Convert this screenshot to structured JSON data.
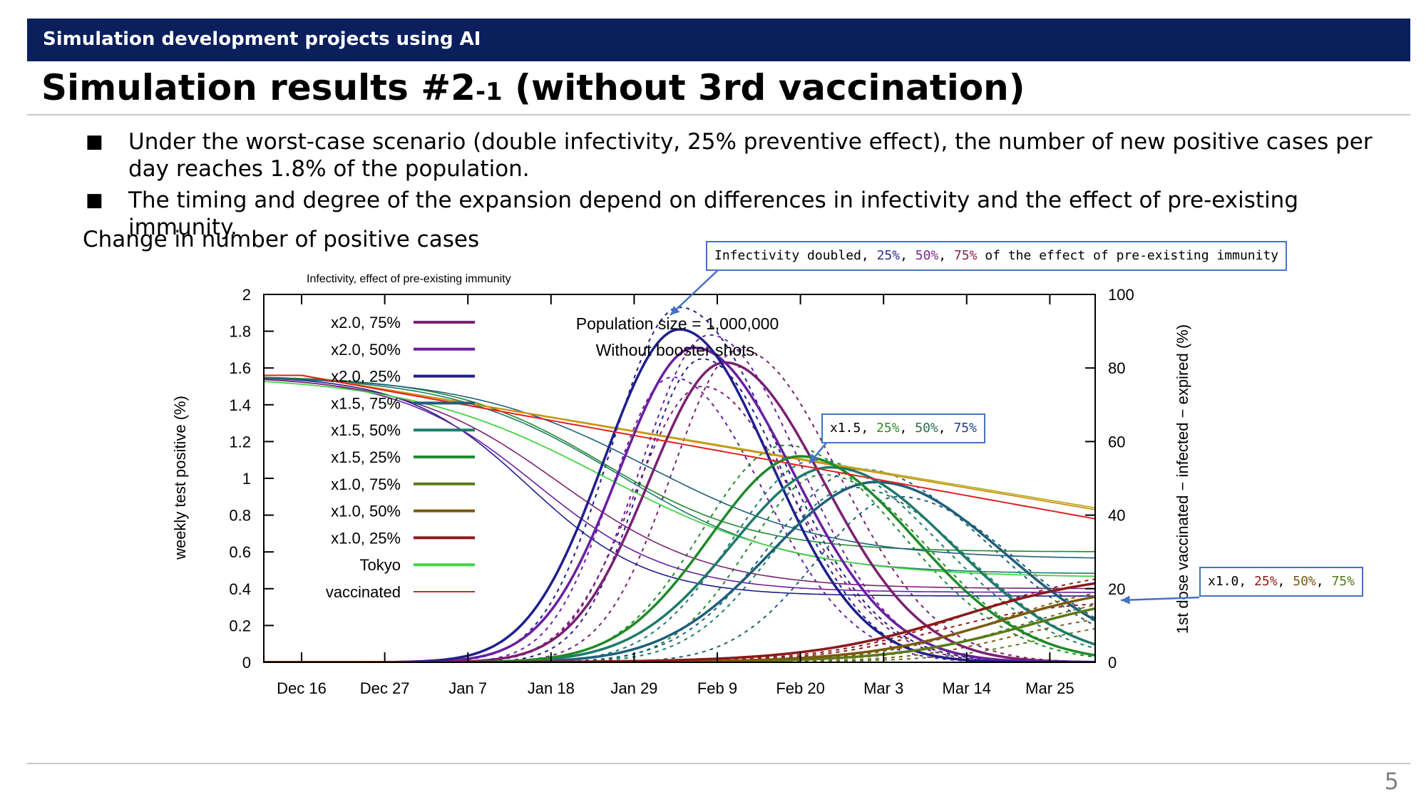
{
  "header": {
    "section_label": "Simulation development projects using AI"
  },
  "title": {
    "main": "Simulation results #2",
    "suffix": "-1",
    "rest": " (without 3rd vaccination)"
  },
  "bullets": [
    "Under the worst-case scenario (double infectivity, 25% preventive effect), the number of new positive cases per day reaches 1.8% of the population.",
    "The timing and degree of the expansion depend on differences in infectivity and the effect of pre-existing immunity."
  ],
  "chart_caption": "Change in number of positive cases",
  "page_number": "5",
  "callouts": {
    "top": {
      "prefix": "Infectivity doubled, ",
      "p25": "25%",
      "sep1": ", ",
      "p50": "50%",
      "sep2": ", ",
      "p75": "75%",
      "suffix": " of the effect of pre-existing immunity",
      "colors": [
        "#2b2b8c",
        "#7a2a8e",
        "#8e1f4f"
      ]
    },
    "mid": {
      "prefix": "x1.5, ",
      "p25": "25%",
      "sep1": ", ",
      "p50": "50%",
      "sep2": ", ",
      "p75": "75%",
      "colors": [
        "#2e8b22",
        "#2a6b4a",
        "#1f3f8c"
      ]
    },
    "right": {
      "prefix": "x1.0, ",
      "p25": "25%",
      "sep1": ", ",
      "p50": "50%",
      "sep2": ", ",
      "p75": "75%",
      "colors": [
        "#8b1a1a",
        "#7a5a10",
        "#4d7a1a"
      ]
    }
  },
  "chart_data": {
    "type": "line",
    "title": "Infectivity, effect of pre-existing immunity",
    "annotation": [
      "Population size = 1,000,000",
      "Without booster shots."
    ],
    "ylabel": "weekly test positive (%)",
    "y2label": "1st dose vaccinated − infected − expired (%)",
    "ylim": [
      0,
      2
    ],
    "y2lim": [
      0,
      100
    ],
    "yticks": [
      "0",
      "0.2",
      "0.4",
      "0.6",
      "0.8",
      "1",
      "1.2",
      "1.4",
      "1.6",
      "1.8",
      "2"
    ],
    "y2ticks": [
      "0",
      "20",
      "40",
      "60",
      "80",
      "100"
    ],
    "xticks": [
      "Dec 16",
      "Dec 27",
      "Jan 7",
      "Jan 18",
      "Jan 29",
      "Feb 9",
      "Feb 20",
      "Mar 3",
      "Mar 14",
      "Mar 25"
    ],
    "xtick_days": [
      0,
      11,
      22,
      33,
      44,
      55,
      66,
      77,
      88,
      99
    ],
    "x_unit": "days since Dec 16",
    "x_range_days": [
      -5,
      105
    ],
    "series": [
      {
        "name": "x2.0, 75%",
        "color": "#7b2072",
        "axis": "left",
        "peak_day": 56,
        "peak": 1.63
      },
      {
        "name": "x2.0, 50%",
        "color": "#6a1fa0",
        "axis": "left",
        "peak_day": 52,
        "peak": 1.71
      },
      {
        "name": "x2.0, 25%",
        "color": "#1f1f8c",
        "axis": "left",
        "peak_day": 50,
        "peak": 1.81
      },
      {
        "name": "x1.5, 75%",
        "color": "#1f5f7a",
        "axis": "left",
        "peak_day": 76,
        "peak": 0.98
      },
      {
        "name": "x1.5, 50%",
        "color": "#1f7a6a",
        "axis": "left",
        "peak_day": 70,
        "peak": 1.06
      },
      {
        "name": "x1.5, 25%",
        "color": "#1f8a2a",
        "axis": "left",
        "peak_day": 66,
        "peak": 1.12
      },
      {
        "name": "x1.0, 75%",
        "color": "#5a7a1a",
        "axis": "left",
        "end_value": 0.32
      },
      {
        "name": "x1.0, 50%",
        "color": "#7a5a10",
        "axis": "left",
        "end_value": 0.36
      },
      {
        "name": "x1.0, 25%",
        "color": "#8b1a1a",
        "axis": "left",
        "end_value": 0.43
      },
      {
        "name": "Tokyo",
        "color": "#44d444",
        "axis": "left"
      },
      {
        "name": "vaccinated",
        "color": "#e02020",
        "axis": "right",
        "start_value": 78,
        "end_value": 39
      }
    ]
  }
}
